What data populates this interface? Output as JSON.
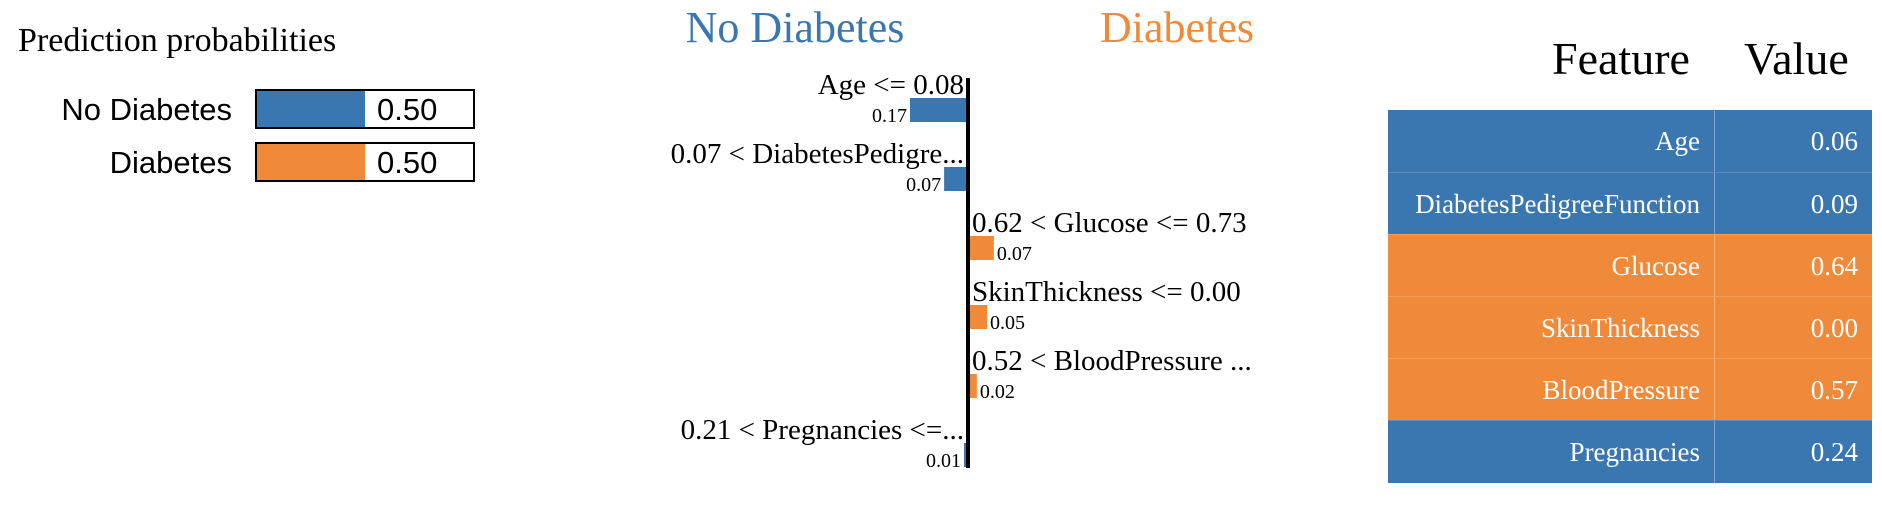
{
  "colors": {
    "no_diabetes": "#3a77b0",
    "diabetes": "#f08a3b"
  },
  "probabilities": {
    "title": "Prediction probabilities",
    "items": [
      {
        "label": "No Diabetes",
        "value": 0.5,
        "display": "0.50",
        "color": "#3a77b0"
      },
      {
        "label": "Diabetes",
        "value": 0.5,
        "display": "0.50",
        "color": "#f08a3b"
      }
    ]
  },
  "chart_data": {
    "type": "bar",
    "orientation": "horizontal",
    "left_class": "No Diabetes",
    "right_class": "Diabetes",
    "features": [
      {
        "label": "Age <= 0.08",
        "weight": -0.17,
        "display": "0.17"
      },
      {
        "label": "0.07 < DiabetesPedigre...",
        "weight": -0.07,
        "display": "0.07"
      },
      {
        "label": "0.62 < Glucose <= 0.73",
        "weight": 0.07,
        "display": "0.07"
      },
      {
        "label": "SkinThickness <= 0.00",
        "weight": 0.05,
        "display": "0.05"
      },
      {
        "label": "0.52 < BloodPressure ...",
        "weight": 0.02,
        "display": "0.02"
      },
      {
        "label": "0.21 < Pregnancies <=...",
        "weight": -0.01,
        "display": "0.01"
      }
    ]
  },
  "table": {
    "header_feature": "Feature",
    "header_value": "Value",
    "rows": [
      {
        "feature": "Age",
        "value": "0.06",
        "class": "no_diabetes"
      },
      {
        "feature": "DiabetesPedigreeFunction",
        "value": "0.09",
        "class": "no_diabetes"
      },
      {
        "feature": "Glucose",
        "value": "0.64",
        "class": "diabetes"
      },
      {
        "feature": "SkinThickness",
        "value": "0.00",
        "class": "diabetes"
      },
      {
        "feature": "BloodPressure",
        "value": "0.57",
        "class": "diabetes"
      },
      {
        "feature": "Pregnancies",
        "value": "0.24",
        "class": "no_diabetes"
      }
    ]
  }
}
